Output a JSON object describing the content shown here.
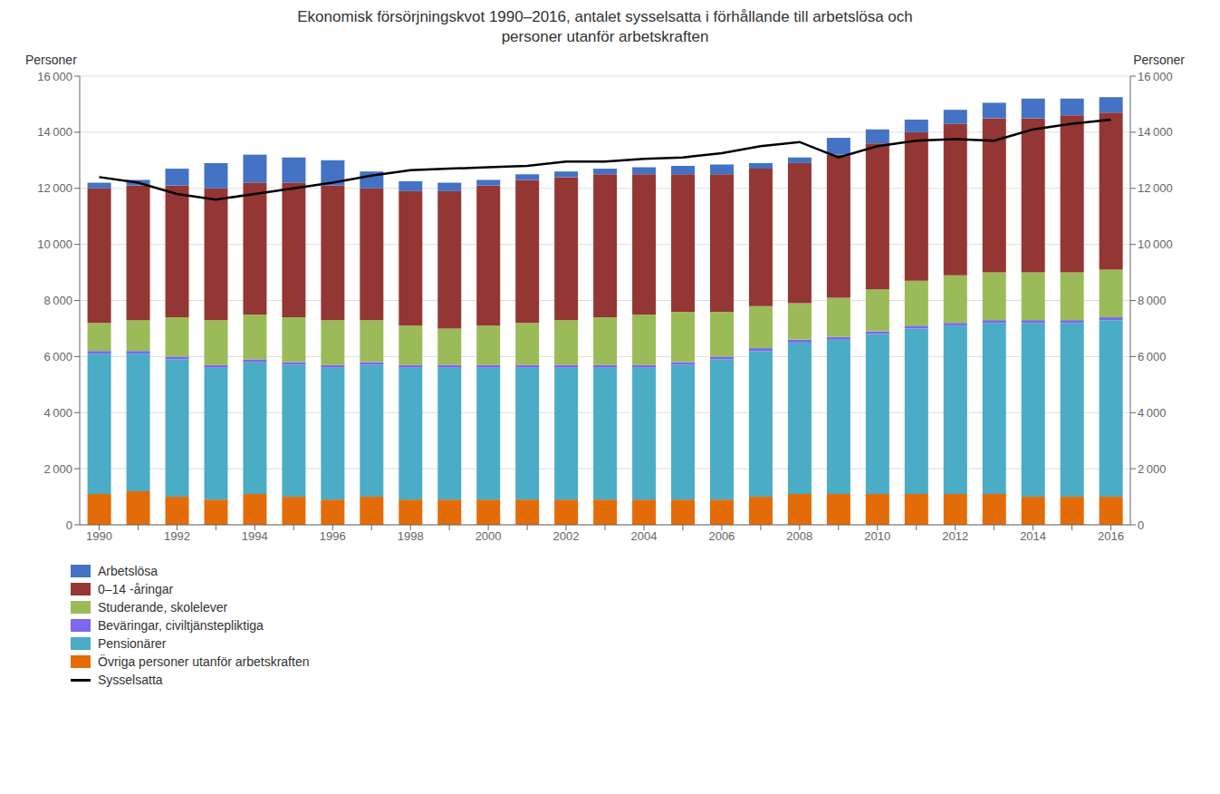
{
  "chart_data": {
    "type": "bar",
    "title": "Ekonomisk försörjningskvot 1990–2016, antalet sysselsatta i förhållande till arbetslösa och\npersoner utanför arbetskraften",
    "ylabel": "Personer",
    "y2label": "Personer",
    "stacked": true,
    "grid": true,
    "legend": "bottom",
    "categories": [
      "1990",
      null,
      "1992",
      null,
      "1994",
      null,
      "1996",
      null,
      "1998",
      null,
      "2000",
      null,
      "2002",
      null,
      "2004",
      null,
      "2006",
      null,
      "2008",
      null,
      "2010",
      null,
      "2012",
      null,
      "2014",
      null,
      "2016"
    ],
    "ylim": [
      0,
      16000
    ],
    "yticks": [
      0,
      {
        "value": 2000,
        "label": "2 000"
      },
      {
        "value": 4000,
        "label": "4 000"
      },
      {
        "value": 6000,
        "label": "6 000"
      },
      {
        "value": 8000,
        "label": "8 000"
      },
      {
        "value": 10000,
        "label": "10 000"
      },
      {
        "value": 12000,
        "label": "12 000"
      },
      {
        "value": 14000,
        "label": "14 000"
      },
      {
        "value": 16000,
        "label": "16 000"
      }
    ],
    "y2lim": [
      0,
      16000
    ],
    "y2ticks": [
      0,
      {
        "value": 2000,
        "label": "2 000"
      },
      {
        "value": 4000,
        "label": "4 000"
      },
      {
        "value": 6000,
        "label": "6 000"
      },
      {
        "value": 8000,
        "label": "8 000"
      },
      {
        "value": 10000,
        "label": "10 000"
      },
      {
        "value": 12000,
        "label": "12 000"
      },
      {
        "value": 14000,
        "label": "14 000"
      },
      {
        "value": 16000,
        "label": "16 000"
      }
    ],
    "series": [
      {
        "name": "Arbetslösa",
        "type": "bar",
        "color": "#4472C4",
        "values": [
          200,
          200,
          600,
          900,
          1000,
          900,
          900,
          600,
          350,
          300,
          200,
          200,
          200,
          200,
          250,
          300,
          350,
          200,
          200,
          600,
          500,
          450,
          500,
          550,
          700,
          600,
          550
        ]
      },
      {
        "name": "0–14 -åringar",
        "type": "bar",
        "color": "#943634",
        "values": [
          4800,
          4800,
          4700,
          4700,
          4700,
          4800,
          4800,
          4700,
          4800,
          4900,
          5000,
          5100,
          5100,
          5100,
          5000,
          4900,
          4900,
          4900,
          5000,
          5100,
          5200,
          5300,
          5400,
          5500,
          5500,
          5600,
          5600
        ]
      },
      {
        "name": "Studerande, skolelever",
        "type": "bar",
        "color": "#9BBB59",
        "values": [
          1000,
          1100,
          1400,
          1600,
          1600,
          1600,
          1600,
          1500,
          1400,
          1300,
          1400,
          1500,
          1600,
          1700,
          1800,
          1800,
          1600,
          1500,
          1300,
          1400,
          1500,
          1600,
          1700,
          1700,
          1700,
          1700,
          1700
        ]
      },
      {
        "name": "Beväringar, civiltjänstepliktiga",
        "type": "bar",
        "color": "#7B68EE",
        "values": [
          100,
          100,
          100,
          100,
          100,
          100,
          100,
          100,
          100,
          100,
          100,
          100,
          100,
          100,
          100,
          100,
          100,
          100,
          100,
          100,
          100,
          100,
          100,
          100,
          100,
          100,
          100
        ]
      },
      {
        "name": "Pensionärer",
        "type": "bar",
        "color": "#4BACC6",
        "values": [
          5000,
          4900,
          4900,
          4700,
          4700,
          4700,
          4700,
          4700,
          4700,
          4700,
          4700,
          4700,
          4700,
          4700,
          4700,
          4800,
          5000,
          5200,
          5400,
          5500,
          5700,
          5900,
          6000,
          6100,
          6200,
          6200,
          6300
        ]
      },
      {
        "name": "Övriga personer utanför arbetskraften",
        "type": "bar",
        "color": "#E36C09",
        "values": [
          1100,
          1200,
          1000,
          900,
          1100,
          1000,
          900,
          1000,
          900,
          900,
          900,
          900,
          900,
          900,
          900,
          900,
          900,
          1000,
          1100,
          1100,
          1100,
          1100,
          1100,
          1100,
          1000,
          1000,
          1000
        ]
      },
      {
        "name": "Sysselsatta",
        "type": "line",
        "color": "#000000",
        "values": [
          12400,
          12200,
          11800,
          11600,
          11800,
          12000,
          12200,
          12450,
          12650,
          12700,
          12750,
          12800,
          12950,
          12950,
          13050,
          13100,
          13250,
          13500,
          13650,
          13100,
          13500,
          13700,
          13750,
          13700,
          14100,
          14300,
          14450
        ]
      }
    ]
  }
}
